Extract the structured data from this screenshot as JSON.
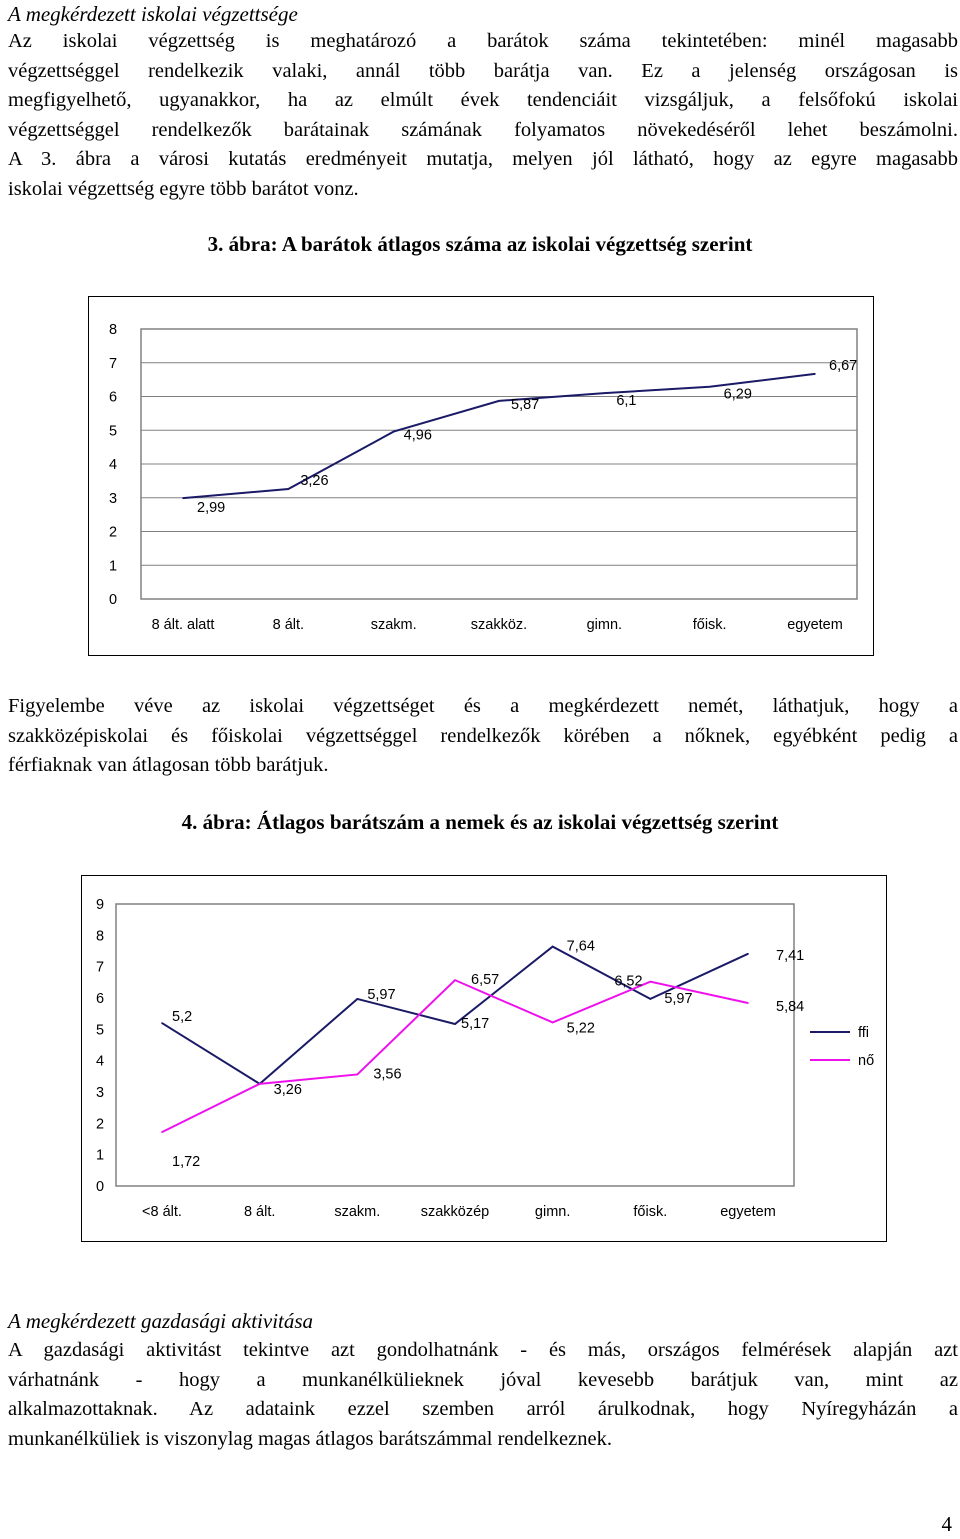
{
  "section1": {
    "heading": "A megkérdezett iskolai végzettsége",
    "lines": [
      "Az iskolai végzettség is meghatározó a barátok száma tekintetében: minél magasabb",
      "végzettséggel rendelkezik valaki, annál több barátja van. Ez a jelenség országosan is",
      "megfigyelhető, ugyanakkor, ha az elmúlt évek tendenciáit vizsgáljuk, a felsőfokú iskolai",
      "végzettséggel rendelkezők barátainak számának folyamatos növekedéséről lehet beszámolni.",
      "A 3. ábra a városi kutatás eredményeit mutatja, melyen jól látható, hogy az egyre magasabb",
      "iskolai végzettség egyre több barátot vonz."
    ]
  },
  "figure3": {
    "title": "3. ábra: A barátok átlagos száma az iskolai végzettség szerint"
  },
  "paragraph2": {
    "lines": [
      "Figyelembe véve az iskolai végzettséget és a megkérdezett nemét, láthatjuk, hogy a",
      "szakközépiskolai és főiskolai végzettséggel rendelkezők körében a nőknek, egyébként pedig a",
      "férfiaknak van átlagosan több barátjuk."
    ]
  },
  "figure4": {
    "title": "4. ábra: Átlagos barátszám a nemek és az iskolai végzettség szerint"
  },
  "section2": {
    "heading": "A megkérdezett gazdasági aktivitása",
    "lines": [
      "A gazdasági aktivitást tekintve azt gondolhatnánk - és más, országos felmérések alapján azt",
      "várhatnánk - hogy a munkanélkülieknek jóval kevesebb barátjuk van, mint az",
      "alkalmazottaknak. Az adataink ezzel szemben arról árulkodnak, hogy Nyíregyházán a",
      "munkanélküliek is viszonylag magas átlagos barátszámmal rendelkeznek."
    ]
  },
  "page_number": "4",
  "colors": {
    "series_ffi": "#1a1a66",
    "series_no": "#ee11ee",
    "grid": "#808080",
    "plot_bg": "#ffffff"
  },
  "chart_data": [
    {
      "type": "line",
      "categories": [
        "8 ált. alatt",
        "8 ált.",
        "szakm.",
        "szakköz.",
        "gimn.",
        "főisk.",
        "egyetem"
      ],
      "series": [
        {
          "values": [
            2.99,
            3.26,
            4.96,
            5.87,
            6.1,
            6.29,
            6.67
          ],
          "labels": [
            "2,99",
            "3,26",
            "4,96",
            "5,87",
            "6,1",
            "6,29",
            "6,67"
          ]
        }
      ],
      "ylim": [
        0,
        8
      ],
      "yticks": [
        "0",
        "1",
        "2",
        "3",
        "4",
        "5",
        "6",
        "7",
        "8"
      ],
      "grid": "horizontal",
      "legend": "none"
    },
    {
      "type": "line",
      "categories": [
        "<8 ált.",
        "8 ált.",
        "szakm.",
        "szakközép",
        "gimn.",
        "főisk.",
        "egyetem"
      ],
      "series": [
        {
          "name": "ffi",
          "values": [
            5.2,
            3.26,
            5.97,
            5.17,
            7.64,
            5.97,
            7.41
          ],
          "labels": [
            "5,2",
            "",
            "5,97",
            "5,17",
            "7,64",
            "5,97",
            "7,41"
          ]
        },
        {
          "name": "nő",
          "values": [
            1.72,
            3.26,
            3.56,
            6.57,
            5.22,
            6.52,
            5.84
          ],
          "labels": [
            "1,72",
            "3,26",
            "3,56",
            "6,57",
            "5,22",
            "6,52",
            "5,84"
          ]
        }
      ],
      "ylim": [
        0,
        9
      ],
      "yticks": [
        "0",
        "1",
        "2",
        "3",
        "4",
        "5",
        "6",
        "7",
        "8",
        "9"
      ],
      "grid": "none",
      "legend": "right"
    }
  ]
}
